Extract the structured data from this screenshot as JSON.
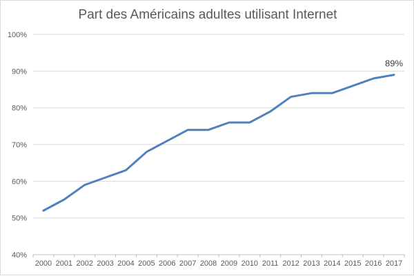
{
  "chart_data": {
    "type": "line",
    "title": "Part des Américains adultes utilisant Internet",
    "xlabel": "",
    "ylabel": "",
    "categories": [
      "2000",
      "2001",
      "2002",
      "2003",
      "2004",
      "2005",
      "2006",
      "2007",
      "2008",
      "2009",
      "2010",
      "2011",
      "2012",
      "2013",
      "2014",
      "2015",
      "2016",
      "2017"
    ],
    "series": [
      {
        "values": [
          52,
          55,
          59,
          61,
          63,
          68,
          71,
          74,
          74,
          76,
          76,
          79,
          83,
          84,
          84,
          86,
          88,
          89
        ]
      }
    ],
    "ylim": [
      40,
      100
    ],
    "yticks": [
      "40%",
      "50%",
      "60%",
      "70%",
      "80%",
      "90%",
      "100%"
    ],
    "grid": true,
    "legend": "none",
    "data_labels": [
      {
        "category": "2017",
        "text": "89%"
      }
    ],
    "colors": {
      "line": "#4f81bd",
      "grid": "#d9d9d9",
      "axis": "#bfbfbf",
      "text": "#595959"
    }
  }
}
